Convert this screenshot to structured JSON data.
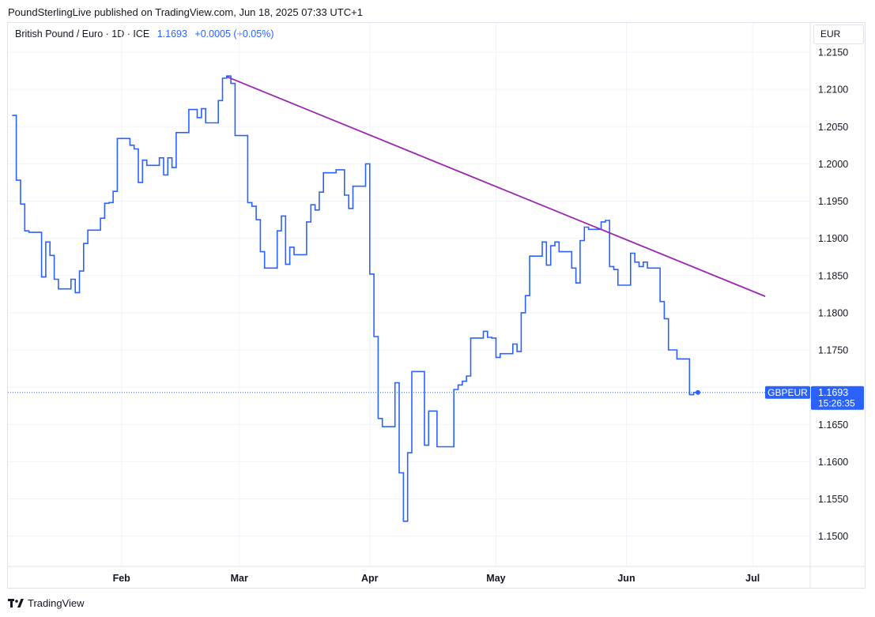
{
  "header": {
    "publisher": "PoundSterlingLive published on TradingView.com, Jun 18, 2025 07:33 UTC+1"
  },
  "legend": {
    "symbol": "British Pound / Euro · 1D · ICE",
    "last": "1.1693",
    "change": "+0.0005 (+0.05%)"
  },
  "axis": {
    "currency": "EUR"
  },
  "price_tag": {
    "symbol": "GBPEUR",
    "price": "1.1693",
    "countdown": "15:26:35"
  },
  "footer": {
    "brand": "TradingView"
  },
  "colors": {
    "series": "#2962ff",
    "trendline": "#9c27b0",
    "grid": "#f0f3fa"
  },
  "chart_data": {
    "type": "line",
    "line_style": "step",
    "title": "",
    "xlabel": "",
    "ylabel": "",
    "ylim": [
      1.146,
      1.2185
    ],
    "yticks": [
      1.15,
      1.155,
      1.16,
      1.165,
      1.17,
      1.175,
      1.18,
      1.185,
      1.19,
      1.195,
      1.2,
      1.205,
      1.21,
      1.215
    ],
    "ytick_labels": [
      "1.1500",
      "1.1550",
      "1.1600",
      "1.1650",
      "1.1700",
      "1.1750",
      "1.1800",
      "1.1850",
      "1.1900",
      "1.1950",
      "1.2000",
      "1.2050",
      "1.2100",
      "1.2150"
    ],
    "xticks": [
      {
        "label": "Feb",
        "date": "2025-02-01"
      },
      {
        "label": "Mar",
        "date": "2025-03-01"
      },
      {
        "label": "Apr",
        "date": "2025-04-01"
      },
      {
        "label": "May",
        "date": "2025-05-01"
      },
      {
        "label": "Jun",
        "date": "2025-06-01"
      },
      {
        "label": "Jul",
        "date": "2025-07-01"
      }
    ],
    "grid": true,
    "series": [
      {
        "values": [
          [
            "2025-01-06",
            1.2065
          ],
          [
            "2025-01-07",
            1.1978
          ],
          [
            "2025-01-08",
            1.1946
          ],
          [
            "2025-01-09",
            1.191
          ],
          [
            "2025-01-10",
            1.1908
          ],
          [
            "2025-01-13",
            1.1848
          ],
          [
            "2025-01-14",
            1.1895
          ],
          [
            "2025-01-15",
            1.1877
          ],
          [
            "2025-01-16",
            1.1845
          ],
          [
            "2025-01-17",
            1.1832
          ],
          [
            "2025-01-20",
            1.1845
          ],
          [
            "2025-01-21",
            1.1827
          ],
          [
            "2025-01-22",
            1.1856
          ],
          [
            "2025-01-23",
            1.1893
          ],
          [
            "2025-01-24",
            1.1911
          ],
          [
            "2025-01-27",
            1.1927
          ],
          [
            "2025-01-28",
            1.1947
          ],
          [
            "2025-01-29",
            1.1948
          ],
          [
            "2025-01-30",
            1.1963
          ],
          [
            "2025-01-31",
            1.2034
          ],
          [
            "2025-02-03",
            1.2025
          ],
          [
            "2025-02-04",
            1.202
          ],
          [
            "2025-02-05",
            1.1975
          ],
          [
            "2025-02-06",
            1.2005
          ],
          [
            "2025-02-07",
            1.1998
          ],
          [
            "2025-02-10",
            1.2008
          ],
          [
            "2025-02-11",
            1.1985
          ],
          [
            "2025-02-12",
            1.2008
          ],
          [
            "2025-02-13",
            1.1995
          ],
          [
            "2025-02-14",
            1.2042
          ],
          [
            "2025-02-17",
            1.2073
          ],
          [
            "2025-02-18",
            1.2073
          ],
          [
            "2025-02-19",
            1.2062
          ],
          [
            "2025-02-20",
            1.2074
          ],
          [
            "2025-02-21",
            1.2055
          ],
          [
            "2025-02-24",
            1.2085
          ],
          [
            "2025-02-25",
            1.2115
          ],
          [
            "2025-02-26",
            1.2118
          ],
          [
            "2025-02-27",
            1.2108
          ],
          [
            "2025-02-28",
            1.2038
          ],
          [
            "2025-03-03",
            1.1948
          ],
          [
            "2025-03-04",
            1.1943
          ],
          [
            "2025-03-05",
            1.1925
          ],
          [
            "2025-03-06",
            1.1882
          ],
          [
            "2025-03-07",
            1.186
          ],
          [
            "2025-03-10",
            1.191
          ],
          [
            "2025-03-11",
            1.193
          ],
          [
            "2025-03-12",
            1.1865
          ],
          [
            "2025-03-13",
            1.1888
          ],
          [
            "2025-03-14",
            1.1878
          ],
          [
            "2025-03-17",
            1.1922
          ],
          [
            "2025-03-18",
            1.1945
          ],
          [
            "2025-03-19",
            1.1938
          ],
          [
            "2025-03-20",
            1.1962
          ],
          [
            "2025-03-21",
            1.1988
          ],
          [
            "2025-03-24",
            1.1992
          ],
          [
            "2025-03-25",
            1.1992
          ],
          [
            "2025-03-26",
            1.1958
          ],
          [
            "2025-03-27",
            1.194
          ],
          [
            "2025-03-28",
            1.197
          ],
          [
            "2025-03-31",
            1.2
          ],
          [
            "2025-04-01",
            1.1852
          ],
          [
            "2025-04-02",
            1.1768
          ],
          [
            "2025-04-03",
            1.1658
          ],
          [
            "2025-04-04",
            1.1647
          ],
          [
            "2025-04-07",
            1.1706
          ],
          [
            "2025-04-08",
            1.1585
          ],
          [
            "2025-04-09",
            1.152
          ],
          [
            "2025-04-10",
            1.1612
          ],
          [
            "2025-04-11",
            1.1721
          ],
          [
            "2025-04-14",
            1.1622
          ],
          [
            "2025-04-15",
            1.1668
          ],
          [
            "2025-04-16",
            1.1668
          ],
          [
            "2025-04-17",
            1.162
          ],
          [
            "2025-04-21",
            1.1697
          ],
          [
            "2025-04-22",
            1.1703
          ],
          [
            "2025-04-23",
            1.1708
          ],
          [
            "2025-04-24",
            1.1715
          ],
          [
            "2025-04-25",
            1.1766
          ],
          [
            "2025-04-28",
            1.1775
          ],
          [
            "2025-04-29",
            1.1767
          ],
          [
            "2025-04-30",
            1.1766
          ],
          [
            "2025-05-01",
            1.174
          ],
          [
            "2025-05-02",
            1.1745
          ],
          [
            "2025-05-05",
            1.1758
          ],
          [
            "2025-05-06",
            1.1748
          ],
          [
            "2025-05-07",
            1.18
          ],
          [
            "2025-05-08",
            1.1823
          ],
          [
            "2025-05-09",
            1.1876
          ],
          [
            "2025-05-12",
            1.1895
          ],
          [
            "2025-05-13",
            1.1864
          ],
          [
            "2025-05-14",
            1.189
          ],
          [
            "2025-05-15",
            1.1895
          ],
          [
            "2025-05-16",
            1.1882
          ],
          [
            "2025-05-19",
            1.186
          ],
          [
            "2025-05-20",
            1.184
          ],
          [
            "2025-05-21",
            1.1897
          ],
          [
            "2025-05-22",
            1.1915
          ],
          [
            "2025-05-23",
            1.1912
          ],
          [
            "2025-05-26",
            1.1922
          ],
          [
            "2025-05-27",
            1.1924
          ],
          [
            "2025-05-28",
            1.1862
          ],
          [
            "2025-05-29",
            1.1858
          ],
          [
            "2025-05-30",
            1.1837
          ],
          [
            "2025-06-02",
            1.188
          ],
          [
            "2025-06-03",
            1.1868
          ],
          [
            "2025-06-04",
            1.1862
          ],
          [
            "2025-06-05",
            1.1868
          ],
          [
            "2025-06-06",
            1.186
          ],
          [
            "2025-06-09",
            1.1815
          ],
          [
            "2025-06-10",
            1.1792
          ],
          [
            "2025-06-11",
            1.175
          ],
          [
            "2025-06-12",
            1.175
          ],
          [
            "2025-06-13",
            1.1738
          ],
          [
            "2025-06-16",
            1.169
          ],
          [
            "2025-06-17",
            1.1693
          ],
          [
            "2025-06-18",
            1.1693
          ]
        ]
      }
    ],
    "trendline": {
      "start": [
        "2025-02-26",
        1.2117
      ],
      "end": [
        "2025-07-04",
        1.1822
      ]
    },
    "last_price_line": 1.1693
  }
}
